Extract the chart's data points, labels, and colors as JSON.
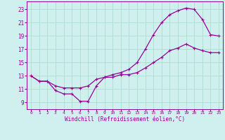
{
  "xlabel": "Windchill (Refroidissement éolien,°C)",
  "bg_color": "#cff0ee",
  "line_color": "#990099",
  "grid_color": "#aaddcc",
  "xlim": [
    -0.5,
    23.5
  ],
  "ylim": [
    8.0,
    24.2
  ],
  "xticks": [
    0,
    1,
    2,
    3,
    4,
    5,
    6,
    7,
    8,
    9,
    10,
    11,
    12,
    13,
    14,
    15,
    16,
    17,
    18,
    19,
    20,
    21,
    22,
    23
  ],
  "yticks": [
    9,
    11,
    13,
    15,
    17,
    19,
    21,
    23
  ],
  "curve1_x": [
    0,
    1,
    2,
    3,
    4,
    5,
    6,
    7,
    8,
    9,
    10,
    11,
    12,
    13,
    14,
    15,
    16,
    17,
    18,
    19,
    20,
    21,
    22,
    23
  ],
  "curve1_y": [
    13,
    12.2,
    12.2,
    10.8,
    10.3,
    10.3,
    9.2,
    9.2,
    11.5,
    12.8,
    12.8,
    13.2,
    13.2,
    13.5,
    14.2,
    15.0,
    15.8,
    16.8,
    17.2,
    17.8,
    17.2,
    16.8,
    16.5,
    16.5
  ],
  "curve2_x": [
    0,
    1,
    2,
    3,
    4,
    5,
    6,
    7,
    8,
    9,
    10,
    11,
    12,
    13,
    14,
    15,
    16,
    17,
    18,
    19,
    20,
    21,
    22,
    23
  ],
  "curve2_y": [
    13,
    12.2,
    12.2,
    11.5,
    11.2,
    11.2,
    11.2,
    11.5,
    12.5,
    12.8,
    13.2,
    13.5,
    14.0,
    15.0,
    17.0,
    19.2,
    21.0,
    22.2,
    22.8,
    23.2,
    23.0,
    21.5,
    19.2,
    19.0
  ]
}
